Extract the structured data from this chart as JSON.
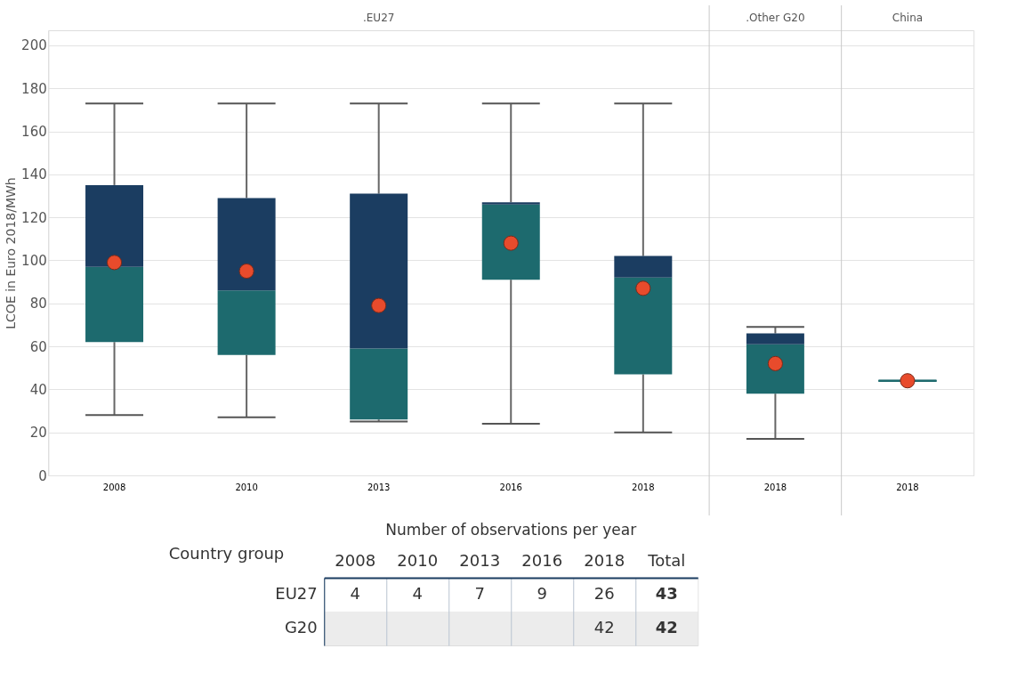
{
  "chart_data": [
    {
      "type": "box",
      "ylabel": "LCOE in Euro 2018/MWh",
      "categories": [
        "2008",
        "2010",
        "2013",
        "2016",
        "2018",
        "2018",
        "2018"
      ],
      "series": [
        {
          "color": "#1d6a6e",
          "boxes": [
            {
              "low": 28,
              "q1": 62,
              "median": 97,
              "q3": 135,
              "high": 173,
              "mean": 99
            },
            {
              "low": 27,
              "q1": 56,
              "median": 86,
              "q3": 129,
              "high": 173,
              "mean": 95
            },
            {
              "low": 25,
              "q1": 26,
              "median": 59,
              "q3": 131,
              "high": 173,
              "mean": 79
            },
            {
              "low": 24,
              "q1": 91,
              "median": 126,
              "q3": 127,
              "high": 173,
              "mean": 108
            },
            {
              "low": 20,
              "q1": 47,
              "median": 92,
              "q3": 102,
              "high": 173,
              "mean": 87
            },
            {
              "low": 17,
              "q1": 38,
              "median": 61,
              "q3": 66,
              "high": 69,
              "mean": 52
            },
            {
              "low": 44,
              "q1": 44,
              "median": 44,
              "q3": 44,
              "high": 44,
              "mean": 44
            }
          ]
        }
      ],
      "ylim": [
        0,
        207
      ],
      "yticks": [
        0,
        20,
        40,
        60,
        80,
        100,
        120,
        140,
        160,
        180,
        200
      ],
      "grid": "y",
      "annotations": [
        ".EU27",
        ".Other G20",
        "China"
      ]
    },
    {
      "type": "heatmap",
      "title": "Number of observations per year",
      "ylabel": "Country group",
      "categories": [
        "2008",
        "2010",
        "2013",
        "2016",
        "2018",
        "Total"
      ],
      "y_categories": [
        "EU27",
        "G20"
      ],
      "cells": [
        [
          4,
          4,
          7,
          9,
          26,
          43
        ],
        [
          null,
          null,
          null,
          null,
          42,
          42
        ]
      ],
      "data_labels": true,
      "grid": "x"
    }
  ]
}
